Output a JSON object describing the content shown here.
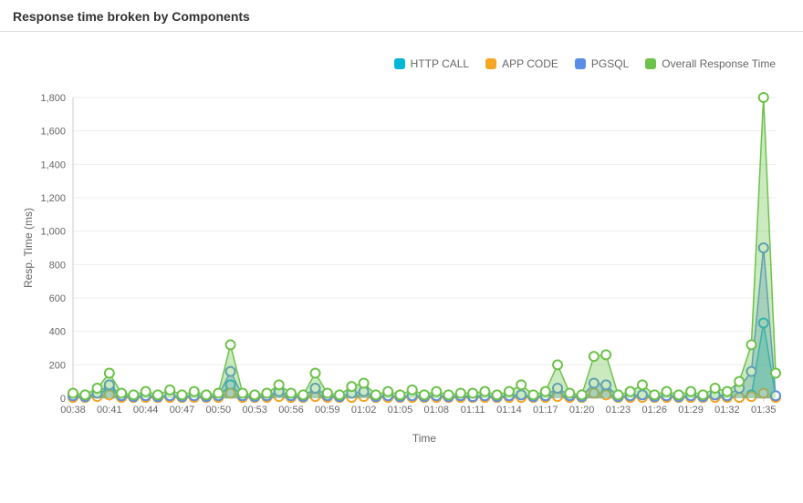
{
  "title": "Response time broken by Components",
  "chart": {
    "type": "line-area",
    "xlabel": "Time",
    "ylabel": "Resp. Time (ms)",
    "ylim": [
      0,
      1800
    ],
    "ytick_step": 200,
    "background_color": "#ffffff",
    "grid_color": "#eeeeee",
    "axis_color": "#cccccc",
    "text_color": "#666666",
    "label_fontsize": 12,
    "tick_fontsize": 11,
    "marker_radius": 5,
    "marker_stroke_width": 2,
    "line_width": 1.5,
    "area_opacity": 0.35,
    "x_categories": [
      "00:38",
      "00:39",
      "00:40",
      "00:41",
      "00:42",
      "00:43",
      "00:44",
      "00:45",
      "00:46",
      "00:47",
      "00:48",
      "00:49",
      "00:50",
      "00:51",
      "00:52",
      "00:53",
      "00:54",
      "00:55",
      "00:56",
      "00:57",
      "00:58",
      "00:59",
      "01:00",
      "01:01",
      "01:02",
      "01:03",
      "01:04",
      "01:05",
      "01:06",
      "01:07",
      "01:08",
      "01:09",
      "01:10",
      "01:11",
      "01:12",
      "01:13",
      "01:14",
      "01:15",
      "01:16",
      "01:17",
      "01:18",
      "01:19",
      "01:20",
      "01:21",
      "01:22",
      "01:23",
      "01:24",
      "01:25",
      "01:26",
      "01:27",
      "01:28",
      "01:29",
      "01:30",
      "01:31",
      "01:32",
      "01:33",
      "01:34",
      "01:35",
      "01:36"
    ],
    "x_tick_every": 3,
    "series": [
      {
        "name": "HTTP CALL",
        "color": "#00b8d4",
        "values": [
          10,
          5,
          20,
          60,
          10,
          5,
          10,
          5,
          10,
          5,
          10,
          5,
          10,
          80,
          10,
          5,
          10,
          20,
          10,
          5,
          20,
          10,
          5,
          10,
          20,
          5,
          10,
          5,
          10,
          5,
          10,
          5,
          10,
          5,
          10,
          5,
          10,
          10,
          5,
          10,
          20,
          10,
          5,
          30,
          30,
          5,
          10,
          10,
          5,
          10,
          5,
          10,
          5,
          10,
          10,
          5,
          20,
          450,
          10
        ]
      },
      {
        "name": "APP CODE",
        "color": "#f5a623",
        "values": [
          5,
          5,
          10,
          20,
          5,
          5,
          5,
          5,
          5,
          5,
          5,
          5,
          5,
          30,
          5,
          5,
          5,
          10,
          5,
          5,
          10,
          5,
          5,
          5,
          10,
          5,
          5,
          5,
          5,
          5,
          5,
          5,
          5,
          5,
          5,
          5,
          5,
          5,
          5,
          5,
          10,
          5,
          5,
          30,
          20,
          5,
          5,
          5,
          5,
          5,
          5,
          5,
          5,
          5,
          5,
          5,
          10,
          30,
          5
        ]
      },
      {
        "name": "PGSQL",
        "color": "#5a8ee6",
        "values": [
          15,
          10,
          30,
          80,
          15,
          10,
          15,
          10,
          15,
          10,
          15,
          10,
          15,
          160,
          15,
          10,
          15,
          40,
          15,
          10,
          60,
          15,
          10,
          30,
          40,
          10,
          15,
          10,
          15,
          10,
          15,
          10,
          15,
          10,
          15,
          10,
          15,
          20,
          10,
          15,
          60,
          15,
          10,
          90,
          80,
          10,
          15,
          20,
          10,
          15,
          10,
          15,
          10,
          20,
          15,
          60,
          160,
          900,
          15
        ]
      },
      {
        "name": "Overall Response Time",
        "color": "#6cc24a",
        "values": [
          30,
          20,
          60,
          150,
          30,
          20,
          40,
          20,
          50,
          20,
          40,
          20,
          30,
          320,
          30,
          20,
          30,
          80,
          30,
          20,
          150,
          30,
          20,
          70,
          90,
          20,
          40,
          20,
          50,
          20,
          40,
          20,
          30,
          30,
          40,
          20,
          40,
          80,
          20,
          40,
          200,
          30,
          20,
          250,
          260,
          20,
          40,
          80,
          20,
          40,
          20,
          40,
          20,
          60,
          40,
          100,
          320,
          1800,
          150
        ]
      }
    ]
  },
  "legend": {
    "items": [
      "HTTP CALL",
      "APP CODE",
      "PGSQL",
      "Overall Response Time"
    ]
  }
}
